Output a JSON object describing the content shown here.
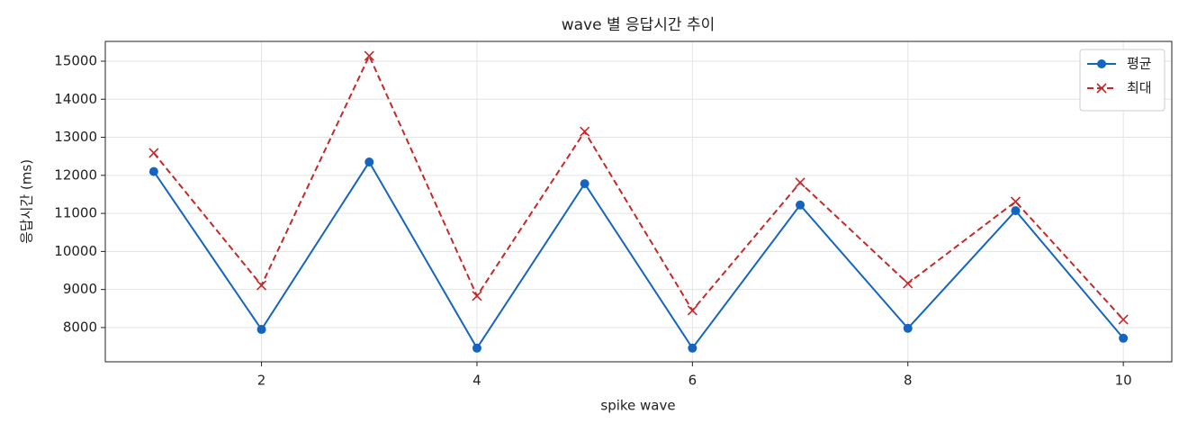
{
  "chart_data": {
    "type": "line",
    "title": "wave 별 응답시간 추이",
    "x_label": "spike wave",
    "y_label": "응답시간 (ms)",
    "x": [
      1,
      2,
      3,
      4,
      5,
      6,
      7,
      8,
      9,
      10
    ],
    "series": [
      {
        "name": "평균",
        "color": "#1565c0",
        "marker": "circle",
        "dash": "solid",
        "values": [
          12100,
          7950,
          12350,
          7460,
          11780,
          7460,
          11220,
          7980,
          11070,
          7720
        ]
      },
      {
        "name": "최대",
        "color": "#c62828",
        "marker": "x",
        "dash": "dashed",
        "values": [
          12590,
          9110,
          15140,
          8830,
          13150,
          8450,
          11810,
          9160,
          11310,
          8210
        ]
      }
    ],
    "xlim": [
      0.55,
      10.45
    ],
    "xticks": [
      2,
      4,
      6,
      8,
      10
    ],
    "ylim": [
      7100,
      15520
    ],
    "yticks": [
      8000,
      9000,
      10000,
      11000,
      12000,
      13000,
      14000,
      15000
    ],
    "grid": true,
    "legend": "upper right"
  }
}
